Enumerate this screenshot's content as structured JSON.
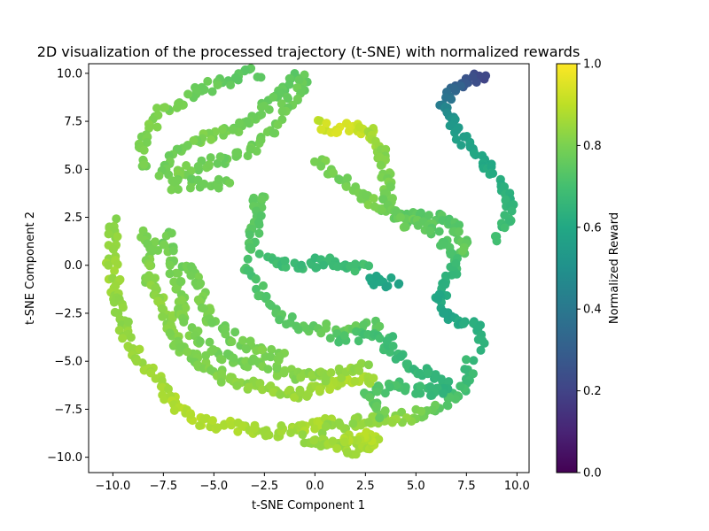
{
  "chart_data": {
    "type": "scatter",
    "title": "2D visualization of the processed trajectory (t-SNE) with normalized rewards",
    "xlabel": "t-SNE Component 1",
    "ylabel": "t-SNE Component 2",
    "xlim": [
      -11.2,
      10.6
    ],
    "ylim": [
      -10.8,
      10.5
    ],
    "xticks": [
      -10.0,
      -7.5,
      -5.0,
      -2.5,
      0.0,
      2.5,
      5.0,
      7.5,
      10.0
    ],
    "yticks": [
      -10.0,
      -7.5,
      -5.0,
      -2.5,
      0.0,
      2.5,
      5.0,
      7.5,
      10.0
    ],
    "xtick_labels": [
      "−10.0",
      "−7.5",
      "−5.0",
      "−2.5",
      "0.0",
      "2.5",
      "5.0",
      "7.5",
      "10.0"
    ],
    "ytick_labels": [
      "−10.0",
      "−7.5",
      "−5.0",
      "−2.5",
      "0.0",
      "2.5",
      "5.0",
      "7.5",
      "10.0"
    ],
    "grid": false,
    "colormap": "viridis",
    "colorbar": {
      "label": "Normalized Reward",
      "range": [
        0.0,
        1.0
      ],
      "ticks": [
        0.0,
        0.2,
        0.4,
        0.6,
        0.8,
        1.0
      ],
      "tick_labels": [
        "0.0",
        "0.2",
        "0.4",
        "0.6",
        "0.8",
        "1.0"
      ]
    },
    "series_note": "",
    "trajectory_segments": [
      {
        "points": [
          [
            8.3,
            9.8
          ],
          [
            8.0,
            9.75
          ],
          [
            7.5,
            9.6
          ],
          [
            7.0,
            9.4
          ],
          [
            6.6,
            9.0
          ],
          [
            6.45,
            8.5
          ],
          [
            6.5,
            8.0
          ],
          [
            6.8,
            7.3
          ],
          [
            7.3,
            6.6
          ],
          [
            8.0,
            5.9
          ],
          [
            8.6,
            5.2
          ],
          [
            9.1,
            4.4
          ],
          [
            9.5,
            3.5
          ],
          [
            9.6,
            2.7
          ],
          [
            9.3,
            1.9
          ],
          [
            9.0,
            1.5
          ]
        ],
        "rewards": [
          0.2,
          0.22,
          0.26,
          0.3,
          0.36,
          0.42,
          0.48,
          0.53,
          0.56,
          0.58,
          0.6,
          0.62,
          0.64,
          0.66,
          0.68,
          0.7
        ],
        "n": 90
      },
      {
        "points": [
          [
            -9.9,
            2.2
          ],
          [
            -10.1,
            1.0
          ],
          [
            -10.0,
            -0.5
          ],
          [
            -9.7,
            -1.8
          ],
          [
            -9.5,
            -3.0
          ],
          [
            -9.2,
            -4.1
          ],
          [
            -8.7,
            -5.0
          ],
          [
            -8.0,
            -5.7
          ],
          [
            -7.5,
            -6.3
          ],
          [
            -7.0,
            -7.2
          ],
          [
            -6.2,
            -7.9
          ],
          [
            -5.2,
            -8.3
          ],
          [
            -4.0,
            -8.4
          ],
          [
            -3.0,
            -8.6
          ],
          [
            -2.0,
            -8.7
          ],
          [
            -1.0,
            -8.5
          ],
          [
            0.0,
            -8.3
          ],
          [
            1.0,
            -8.1
          ]
        ],
        "rewards": [
          0.82,
          0.84,
          0.85,
          0.84,
          0.83,
          0.84,
          0.85,
          0.86,
          0.87,
          0.88,
          0.89,
          0.88,
          0.87,
          0.86,
          0.85,
          0.86,
          0.87,
          0.88
        ],
        "n": 150
      },
      {
        "points": [
          [
            -8.5,
            1.7
          ],
          [
            -8.0,
            1.0
          ],
          [
            -8.3,
            0.0
          ],
          [
            -8.0,
            -1.0
          ],
          [
            -7.5,
            -2.0
          ],
          [
            -7.2,
            -3.0
          ],
          [
            -6.8,
            -4.0
          ],
          [
            -6.0,
            -5.0
          ],
          [
            -5.0,
            -5.6
          ],
          [
            -4.0,
            -6.0
          ],
          [
            -3.0,
            -6.3
          ],
          [
            -2.0,
            -6.5
          ],
          [
            -1.0,
            -6.8
          ],
          [
            0.0,
            -6.5
          ],
          [
            1.0,
            -6.2
          ],
          [
            2.0,
            -6.0
          ],
          [
            3.0,
            -6.1
          ]
        ],
        "rewards": [
          0.8,
          0.8,
          0.81,
          0.82,
          0.83,
          0.82,
          0.81,
          0.8,
          0.81,
          0.82,
          0.83,
          0.84,
          0.85,
          0.86,
          0.87,
          0.88,
          0.86
        ],
        "n": 140
      },
      {
        "points": [
          [
            -7.4,
            1.8
          ],
          [
            -7.0,
            0.2
          ],
          [
            -6.8,
            -1.3
          ],
          [
            -6.5,
            -2.5
          ],
          [
            -6.0,
            -3.5
          ],
          [
            -5.3,
            -4.4
          ],
          [
            -4.5,
            -4.8
          ],
          [
            -3.5,
            -5.0
          ],
          [
            -2.5,
            -5.3
          ],
          [
            -1.5,
            -5.6
          ],
          [
            -0.5,
            -5.8
          ],
          [
            0.5,
            -5.8
          ],
          [
            1.5,
            -5.6
          ],
          [
            2.5,
            -5.3
          ]
        ],
        "rewards": [
          0.78,
          0.79,
          0.8,
          0.81,
          0.8,
          0.79,
          0.78,
          0.79,
          0.8,
          0.81,
          0.82,
          0.83,
          0.84,
          0.82
        ],
        "n": 110
      },
      {
        "points": [
          [
            -6.3,
            0.2
          ],
          [
            -5.8,
            -0.8
          ],
          [
            -5.5,
            -2.0
          ],
          [
            -5.0,
            -3.0
          ],
          [
            -4.2,
            -3.7
          ],
          [
            -3.3,
            -4.2
          ],
          [
            -2.4,
            -4.6
          ],
          [
            -1.5,
            -4.9
          ]
        ],
        "rewards": [
          0.78,
          0.79,
          0.8,
          0.79,
          0.78,
          0.79,
          0.8,
          0.81
        ],
        "n": 55
      },
      {
        "points": [
          [
            -2.7,
            10.0
          ],
          [
            -3.5,
            10.0
          ],
          [
            -4.5,
            9.6
          ],
          [
            -5.5,
            9.2
          ],
          [
            -6.3,
            8.8
          ],
          [
            -7.0,
            8.4
          ],
          [
            -7.6,
            7.9
          ],
          [
            -8.2,
            7.1
          ],
          [
            -8.6,
            6.0
          ],
          [
            -8.5,
            5.0
          ]
        ],
        "rewards": [
          0.74,
          0.75,
          0.76,
          0.77,
          0.78,
          0.79,
          0.8,
          0.81,
          0.8,
          0.79
        ],
        "n": 60
      },
      {
        "points": [
          [
            -1.0,
            9.9
          ],
          [
            -1.6,
            9.2
          ],
          [
            -2.2,
            8.6
          ],
          [
            -2.8,
            8.0
          ],
          [
            -3.5,
            7.4
          ],
          [
            -4.2,
            7.0
          ],
          [
            -4.8,
            6.8
          ],
          [
            -5.5,
            6.6
          ],
          [
            -6.2,
            6.3
          ],
          [
            -6.8,
            6.0
          ],
          [
            -7.3,
            5.5
          ],
          [
            -7.5,
            4.8
          ]
        ],
        "rewards": [
          0.74,
          0.75,
          0.76,
          0.77,
          0.78,
          0.79,
          0.8,
          0.8,
          0.79,
          0.78,
          0.78,
          0.79
        ],
        "n": 65
      },
      {
        "points": [
          [
            -0.3,
            9.9
          ],
          [
            -1.0,
            8.8
          ],
          [
            -1.6,
            7.8
          ],
          [
            -2.3,
            6.9
          ],
          [
            -2.9,
            6.2
          ],
          [
            -3.6,
            5.7
          ],
          [
            -4.5,
            5.5
          ],
          [
            -5.4,
            5.3
          ],
          [
            -6.2,
            5.0
          ],
          [
            -6.8,
            4.6
          ],
          [
            -7.2,
            4.1
          ],
          [
            -6.5,
            4.3
          ],
          [
            -5.6,
            4.2
          ],
          [
            -4.8,
            4.3
          ],
          [
            -4.2,
            4.2
          ]
        ],
        "rewards": [
          0.76,
          0.77,
          0.78,
          0.79,
          0.78,
          0.77,
          0.77,
          0.78,
          0.79,
          0.8,
          0.79,
          0.78,
          0.77,
          0.78,
          0.79
        ],
        "n": 80
      },
      {
        "points": [
          [
            0.0,
            7.4
          ],
          [
            0.5,
            7.2
          ],
          [
            1.0,
            7.1
          ],
          [
            1.5,
            7.2
          ],
          [
            2.0,
            7.15
          ],
          [
            2.6,
            7.0
          ],
          [
            3.0,
            6.6
          ],
          [
            3.3,
            5.8
          ],
          [
            3.5,
            4.6
          ],
          [
            3.6,
            3.5
          ],
          [
            3.4,
            2.9
          ],
          [
            3.8,
            2.5
          ],
          [
            4.5,
            2.4
          ],
          [
            5.5,
            2.6
          ],
          [
            6.5,
            2.3
          ],
          [
            7.0,
            1.8
          ],
          [
            7.3,
            1.2
          ],
          [
            7.2,
            0.5
          ]
        ],
        "rewards": [
          0.9,
          0.93,
          0.95,
          0.94,
          0.92,
          0.9,
          0.86,
          0.82,
          0.8,
          0.78,
          0.77,
          0.76,
          0.75,
          0.74,
          0.73,
          0.74,
          0.75,
          0.76
        ],
        "n": 110
      },
      {
        "points": [
          [
            0.1,
            5.5
          ],
          [
            0.8,
            4.8
          ],
          [
            1.5,
            4.2
          ],
          [
            2.2,
            3.7
          ],
          [
            2.8,
            3.3
          ],
          [
            3.4,
            3.0
          ]
        ],
        "rewards": [
          0.8,
          0.79,
          0.78,
          0.79,
          0.8,
          0.79
        ],
        "n": 30
      },
      {
        "points": [
          [
            3.8,
            3.0
          ],
          [
            4.5,
            2.2
          ],
          [
            5.5,
            2.0
          ],
          [
            6.0,
            1.5
          ],
          [
            6.5,
            0.8
          ],
          [
            7.0,
            0.3
          ],
          [
            6.8,
            -0.5
          ],
          [
            6.3,
            -1.0
          ],
          [
            6.2,
            -2.0
          ],
          [
            6.6,
            -2.6
          ],
          [
            7.2,
            -2.9
          ],
          [
            7.8,
            -3.2
          ],
          [
            8.2,
            -3.5
          ],
          [
            8.3,
            -4.2
          ]
        ],
        "rewards": [
          0.78,
          0.77,
          0.76,
          0.74,
          0.72,
          0.7,
          0.66,
          0.63,
          0.6,
          0.58,
          0.6,
          0.62,
          0.63,
          0.64
        ],
        "n": 85
      },
      {
        "points": [
          [
            7.7,
            -5.0
          ],
          [
            7.5,
            -6.0
          ],
          [
            7.0,
            -6.8
          ],
          [
            6.3,
            -7.3
          ],
          [
            5.5,
            -7.7
          ],
          [
            4.5,
            -7.9
          ],
          [
            3.5,
            -8.0
          ],
          [
            2.5,
            -8.1
          ],
          [
            1.5,
            -8.3
          ],
          [
            0.5,
            -8.6
          ]
        ],
        "rewards": [
          0.67,
          0.68,
          0.7,
          0.74,
          0.78,
          0.82,
          0.85,
          0.84,
          0.83,
          0.82
        ],
        "n": 70
      },
      {
        "points": [
          [
            3.5,
            -4.2
          ],
          [
            4.5,
            -5.0
          ],
          [
            5.3,
            -5.5
          ],
          [
            6.0,
            -5.8
          ],
          [
            6.5,
            -6.3
          ],
          [
            6.0,
            -6.7
          ],
          [
            5.0,
            -6.5
          ],
          [
            4.0,
            -6.2
          ],
          [
            3.0,
            -6.5
          ],
          [
            2.5,
            -7.0
          ],
          [
            3.0,
            -7.3
          ],
          [
            3.5,
            -7.8
          ]
        ],
        "rewards": [
          0.68,
          0.67,
          0.66,
          0.65,
          0.64,
          0.66,
          0.68,
          0.7,
          0.72,
          0.74,
          0.76,
          0.78
        ],
        "n": 75
      },
      {
        "points": [
          [
            -0.5,
            -9.0
          ],
          [
            0.3,
            -9.2
          ],
          [
            1.0,
            -9.4
          ],
          [
            1.8,
            -9.6
          ],
          [
            2.5,
            -9.5
          ],
          [
            3.0,
            -9.2
          ],
          [
            2.5,
            -8.8
          ],
          [
            2.0,
            -9.0
          ],
          [
            1.5,
            -9.3
          ]
        ],
        "rewards": [
          0.83,
          0.84,
          0.85,
          0.86,
          0.87,
          0.88,
          0.89,
          0.88,
          0.87
        ],
        "n": 60
      },
      {
        "points": [
          [
            -2.7,
            3.8
          ],
          [
            -2.9,
            3.0
          ],
          [
            -2.9,
            2.2
          ],
          [
            -3.1,
            1.3
          ],
          [
            -3.3,
            0.7
          ]
        ],
        "rewards": [
          0.76,
          0.75,
          0.74,
          0.73,
          0.72
        ],
        "n": 30
      },
      {
        "points": [
          [
            -3.3,
            0.2
          ],
          [
            -3.1,
            -0.8
          ],
          [
            -2.6,
            -1.6
          ],
          [
            -2.0,
            -2.2
          ],
          [
            -1.3,
            -2.8
          ],
          [
            -0.6,
            -3.2
          ],
          [
            0.3,
            -3.3
          ],
          [
            1.3,
            -3.3
          ],
          [
            2.2,
            -3.2
          ],
          [
            3.3,
            -3.1
          ]
        ],
        "rewards": [
          0.72,
          0.71,
          0.72,
          0.73,
          0.74,
          0.75,
          0.76,
          0.77,
          0.76,
          0.75
        ],
        "n": 50
      },
      {
        "points": [
          [
            -2.5,
            0.4
          ],
          [
            -1.8,
            0.1
          ],
          [
            -1.0,
            0.0
          ],
          [
            0.0,
            0.1
          ],
          [
            1.0,
            0.2
          ],
          [
            1.8,
            0.1
          ],
          [
            2.5,
            -0.3
          ]
        ],
        "rewards": [
          0.7,
          0.69,
          0.68,
          0.67,
          0.67,
          0.68,
          0.7
        ],
        "n": 40
      },
      {
        "points": [
          [
            2.7,
            -0.7
          ],
          [
            3.3,
            -0.8
          ],
          [
            4.0,
            -0.9
          ]
        ],
        "rewards": [
          0.6,
          0.59,
          0.58
        ],
        "n": 12
      },
      {
        "points": [
          [
            0.8,
            -3.8
          ],
          [
            1.8,
            -3.7
          ],
          [
            2.8,
            -3.6
          ],
          [
            3.6,
            -3.9
          ],
          [
            4.0,
            -4.1
          ]
        ],
        "rewards": [
          0.72,
          0.71,
          0.7,
          0.69,
          0.68
        ],
        "n": 20
      }
    ]
  }
}
